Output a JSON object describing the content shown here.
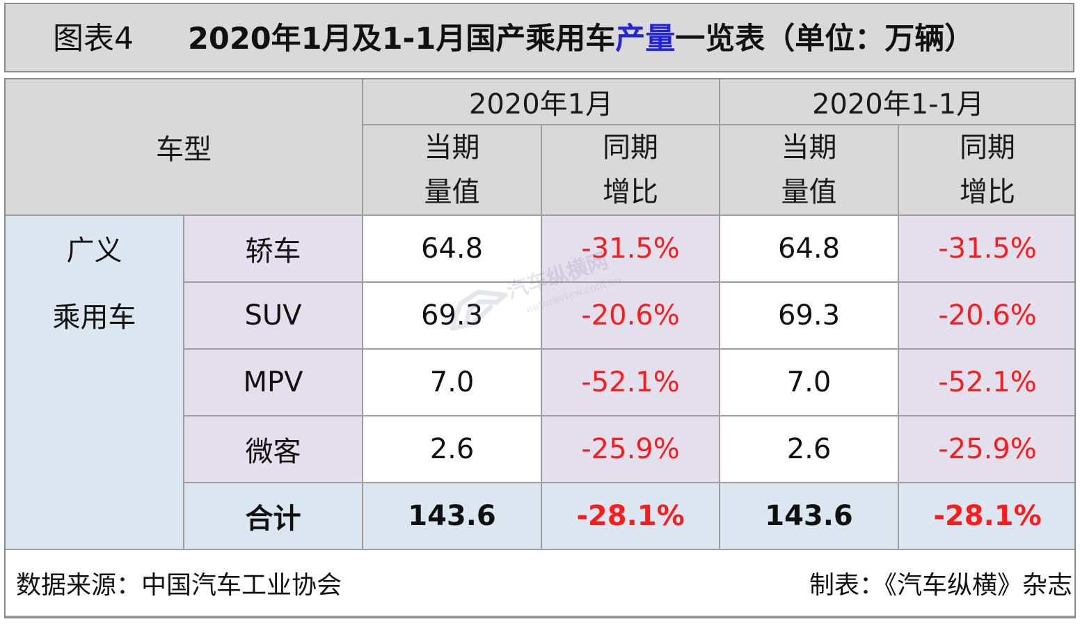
{
  "header": {
    "figure_label": "图表4",
    "title_prefix": "2020年1月及1-1月国产乘用车",
    "title_highlight": "产量",
    "title_suffix": "一览表（单位：万辆）",
    "highlight_color": "#2424d8"
  },
  "table": {
    "corner_label": "车型",
    "periods": [
      "2020年1月",
      "2020年1-1月"
    ],
    "sub_headers": [
      {
        "line1": "当期",
        "line2": "量值"
      },
      {
        "line1": "同期",
        "line2": "增比"
      },
      {
        "line1": "当期",
        "line2": "量值"
      },
      {
        "line1": "同期",
        "line2": "增比"
      }
    ],
    "group_label_line1": "广义",
    "group_label_line2": "乘用车",
    "rows": [
      {
        "name": "轿车",
        "m_value": "64.8",
        "m_growth": "-31.5%",
        "ytd_value": "64.8",
        "ytd_growth": "-31.5%"
      },
      {
        "name": "SUV",
        "m_value": "69.3",
        "m_growth": "-20.6%",
        "ytd_value": "69.3",
        "ytd_growth": "-20.6%"
      },
      {
        "name": "MPV",
        "m_value": "7.0",
        "m_growth": "-52.1%",
        "ytd_value": "7.0",
        "ytd_growth": "-52.1%"
      },
      {
        "name": "微客",
        "m_value": "2.6",
        "m_growth": "-25.9%",
        "ytd_value": "2.6",
        "ytd_growth": "-25.9%"
      }
    ],
    "total": {
      "name": "合计",
      "m_value": "143.6",
      "m_growth": "-28.1%",
      "ytd_value": "143.6",
      "ytd_growth": "-28.1%"
    },
    "negative_color": "#ff1b1b"
  },
  "footer": {
    "source": "数据来源：中国汽车工业协会",
    "credit": "制表：《汽车纵横》杂志"
  },
  "watermark": {
    "brand": "汽车纵横网",
    "url": "autoreview.com.cn"
  },
  "chart_data": {
    "type": "table",
    "title": "2020年1月及1-1月国产乘用车产量一览表（单位：万辆）",
    "columns": [
      "车型",
      "2020年1月 当期量值",
      "2020年1月 同期增比",
      "2020年1-1月 当期量值",
      "2020年1-1月 同期增比"
    ],
    "rows": [
      [
        "轿车",
        64.8,
        "-31.5%",
        64.8,
        "-31.5%"
      ],
      [
        "SUV",
        69.3,
        "-20.6%",
        69.3,
        "-20.6%"
      ],
      [
        "MPV",
        7.0,
        "-52.1%",
        7.0,
        "-52.1%"
      ],
      [
        "微客",
        2.6,
        "-25.9%",
        2.6,
        "-25.9%"
      ],
      [
        "合计",
        143.6,
        "-28.1%",
        143.6,
        "-28.1%"
      ]
    ]
  }
}
